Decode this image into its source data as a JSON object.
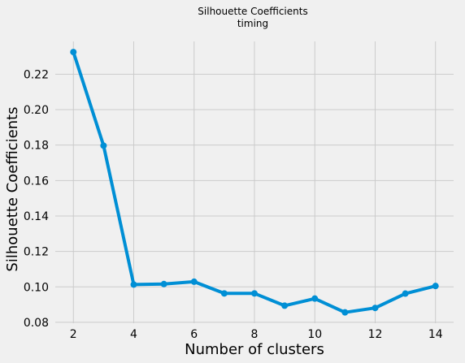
{
  "chart_data": {
    "type": "line",
    "title": "Silhouette Coefficients",
    "subtitle": "timing",
    "xlabel": "Number of clusters",
    "ylabel": "Silhouette Coefficients",
    "x": [
      2,
      3,
      4,
      5,
      6,
      7,
      8,
      9,
      10,
      11,
      12,
      13,
      14
    ],
    "series": [
      {
        "values": [
          0.2325,
          0.1797,
          0.1013,
          0.1016,
          0.1029,
          0.0963,
          0.0963,
          0.0894,
          0.0934,
          0.0856,
          0.0881,
          0.0962,
          0.1005
        ]
      }
    ],
    "xlim": [
      1.4,
      14.6
    ],
    "ylim": [
      0.0795,
      0.2385
    ],
    "xticks": [
      2,
      4,
      6,
      8,
      10,
      12,
      14
    ],
    "xtick_labels": [
      "2",
      "4",
      "6",
      "8",
      "10",
      "12",
      "14"
    ],
    "yticks": [
      0.08,
      0.1,
      0.12,
      0.14,
      0.16,
      0.18,
      0.2,
      0.22
    ],
    "ytick_labels": [
      "0.08",
      "0.10",
      "0.12",
      "0.14",
      "0.16",
      "0.18",
      "0.20",
      "0.22"
    ],
    "grid": true,
    "legend": "none",
    "colors": {
      "background": "#f0f0f0",
      "grid": "#cbcbcb",
      "line": "#008fd5"
    }
  }
}
